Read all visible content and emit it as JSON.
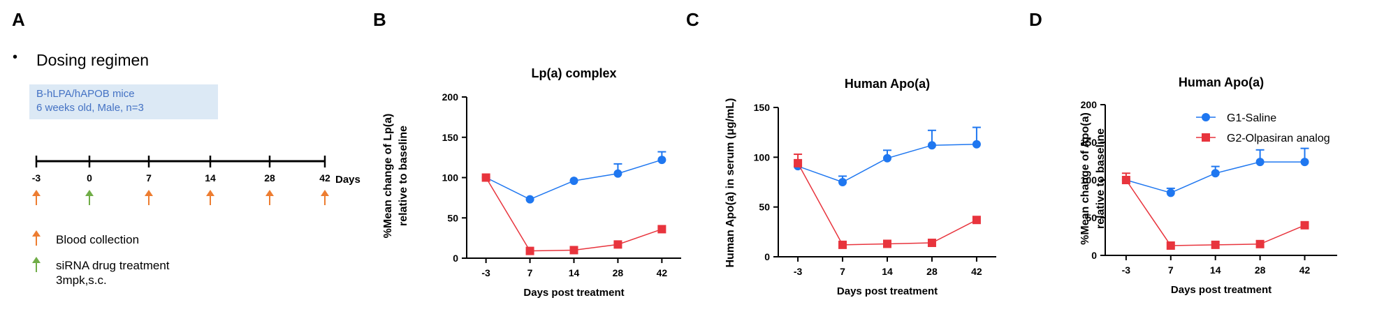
{
  "panels": {
    "A": "A",
    "B": "B",
    "C": "C",
    "D": "D"
  },
  "dosing": {
    "bullet": "•",
    "heading": "Dosing regimen",
    "mouse_info": [
      "B-hLPA/hAPOB mice",
      "6 weeks old, Male, n=3"
    ],
    "timeline_days": [
      "-3",
      "0",
      "7",
      "14",
      "28",
      "42"
    ],
    "timeline_unit": "Days",
    "arrow_types": [
      "blood",
      "drug",
      "blood",
      "blood",
      "blood",
      "blood"
    ],
    "legend": {
      "blood": "Blood collection",
      "drug_line1": "siRNA drug treatment",
      "drug_line2": "3mpk,s.c."
    },
    "colors": {
      "blood": "#ed7d31",
      "drug": "#70ad47",
      "box_text": "#4472c4"
    }
  },
  "chart_data": [
    {
      "type": "line",
      "title": "Lp(a) complex",
      "xlabel": "Days post treatment",
      "ylabel": [
        "%Mean change of Lp(a)",
        "relative to baseline"
      ],
      "categories": [
        "-3",
        "7",
        "14",
        "28",
        "42"
      ],
      "ylim": [
        0,
        200
      ],
      "yticks": [
        0,
        50,
        100,
        150,
        200
      ],
      "series": [
        {
          "values": [
            100,
            73,
            96,
            105,
            122
          ],
          "err": [
            0,
            0,
            0,
            12,
            10
          ],
          "color": "#1f77f0",
          "marker": "circle"
        },
        {
          "values": [
            100,
            9,
            10,
            17,
            36
          ],
          "err": [
            0,
            0,
            0,
            0,
            0
          ],
          "color": "#e8343d",
          "marker": "square"
        }
      ]
    },
    {
      "type": "line",
      "title": "Human Apo(a)",
      "xlabel": "Days post treatment",
      "ylabel": [
        "Human Apo(a) in serum (μg/mL)"
      ],
      "categories": [
        "-3",
        "7",
        "14",
        "28",
        "42"
      ],
      "ylim": [
        0,
        150
      ],
      "yticks": [
        0,
        50,
        100,
        150
      ],
      "series": [
        {
          "values": [
            91,
            75,
            99,
            112,
            113
          ],
          "err": [
            0,
            6,
            8,
            15,
            17
          ],
          "color": "#1f77f0",
          "marker": "circle"
        },
        {
          "values": [
            94,
            12,
            13,
            14,
            37
          ],
          "err": [
            9,
            0,
            0,
            0,
            0
          ],
          "color": "#e8343d",
          "marker": "square"
        }
      ]
    },
    {
      "type": "line",
      "title": "Human Apo(a)",
      "xlabel": "Days post treatment",
      "ylabel": [
        "%Mean change of Apo(a)",
        "relative to baseline"
      ],
      "categories": [
        "-3",
        "7",
        "14",
        "28",
        "42"
      ],
      "ylim": [
        0,
        200
      ],
      "yticks": [
        0,
        50,
        100,
        150,
        200
      ],
      "legend_position": "top-right",
      "series": [
        {
          "name": "G1-Saline",
          "values": [
            100,
            83,
            109,
            124,
            124
          ],
          "err": [
            0,
            6,
            9,
            16,
            18
          ],
          "color": "#1f77f0",
          "marker": "circle"
        },
        {
          "name": "G2-Olpasiran analog",
          "values": [
            100,
            13,
            14,
            15,
            40
          ],
          "err": [
            9,
            0,
            0,
            0,
            0
          ],
          "color": "#e8343d",
          "marker": "square"
        }
      ]
    }
  ]
}
